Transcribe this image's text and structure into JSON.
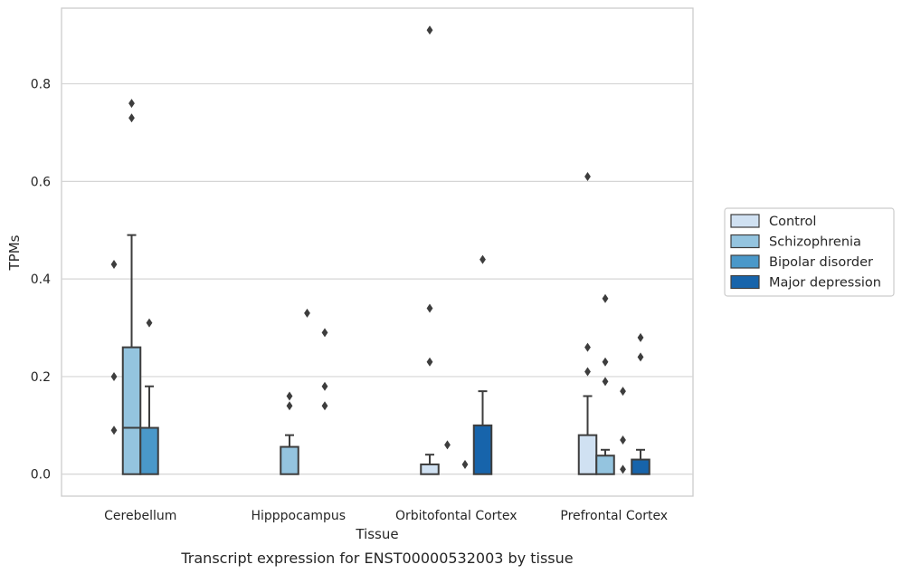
{
  "chart_data": {
    "type": "box",
    "caption": "Transcript expression for ENST00000532003 by tissue",
    "xlabel": "Tissue",
    "ylabel": "TPMs",
    "ylim": [
      -0.045,
      0.955
    ],
    "yticks": [
      0.0,
      0.2,
      0.4,
      0.6,
      0.8
    ],
    "ytick_labels": [
      "0.0",
      "0.2",
      "0.4",
      "0.6",
      "0.8"
    ],
    "grid": "horizontal",
    "legend_position": "right",
    "categories": [
      "Cerebellum",
      "Hipppocampus",
      "Orbitofontal Cortex",
      "Prefrontal Cortex"
    ],
    "series": [
      {
        "name": "Control",
        "color": "#d0e1f2",
        "boxes": [
          {
            "q1": 0,
            "median": 0,
            "q3": 0,
            "whisker_low": 0,
            "whisker_high": 0,
            "outliers": []
          },
          {
            "q1": 0,
            "median": 0,
            "q3": 0,
            "whisker_low": 0,
            "whisker_high": 0,
            "outliers": []
          },
          {
            "q1": 0,
            "median": 0,
            "q3": 0.02,
            "whisker_low": 0,
            "whisker_high": 0.04,
            "outliers": [
              0.23,
              0.34,
              0.91
            ]
          },
          {
            "q1": 0,
            "median": 0,
            "q3": 0.08,
            "whisker_low": 0,
            "whisker_high": 0.16,
            "outliers": [
              0.21,
              0.26,
              0.61
            ]
          }
        ]
      },
      {
        "name": "Schizophrenia",
        "color": "#94c4df",
        "boxes": [
          {
            "q1": 0,
            "median": 0.095,
            "q3": 0.26,
            "whisker_low": 0,
            "whisker_high": 0.49,
            "outliers": [
              0.73,
              0.76
            ]
          },
          {
            "q1": 0,
            "median": 0,
            "q3": 0.056,
            "whisker_low": 0,
            "whisker_high": 0.08,
            "outliers": [
              0.14,
              0.16
            ]
          },
          {
            "q1": 0,
            "median": 0,
            "q3": 0,
            "whisker_low": 0,
            "whisker_high": 0,
            "outliers": [
              0.06
            ]
          },
          {
            "q1": 0,
            "median": 0,
            "q3": 0.038,
            "whisker_low": 0,
            "whisker_high": 0.05,
            "outliers": [
              0.19,
              0.23,
              0.36
            ]
          }
        ]
      },
      {
        "name": "Bipolar disorder",
        "color": "#4a98c9",
        "boxes": [
          {
            "q1": 0,
            "median": 0,
            "q3": 0.095,
            "whisker_low": 0,
            "whisker_high": 0.18,
            "outliers": [
              0.31
            ]
          },
          {
            "q1": 0,
            "median": 0,
            "q3": 0,
            "whisker_low": 0,
            "whisker_high": 0,
            "outliers": [
              0.33
            ]
          },
          {
            "q1": 0,
            "median": 0,
            "q3": 0,
            "whisker_low": 0,
            "whisker_high": 0,
            "outliers": [
              0.02
            ]
          },
          {
            "q1": 0,
            "median": 0,
            "q3": 0,
            "whisker_low": 0,
            "whisker_high": 0,
            "outliers": [
              0.01,
              0.07,
              0.17
            ]
          }
        ]
      },
      {
        "name": "Major depression",
        "color": "#1764ab",
        "boxes": [
          {
            "q1": 0,
            "median": 0,
            "q3": 0,
            "whisker_low": 0,
            "whisker_high": 0,
            "outliers": []
          },
          {
            "q1": 0,
            "median": 0,
            "q3": 0,
            "whisker_low": 0,
            "whisker_high": 0,
            "outliers": [
              0.14,
              0.18,
              0.29
            ]
          },
          {
            "q1": 0,
            "median": 0,
            "q3": 0.1,
            "whisker_low": 0,
            "whisker_high": 0.17,
            "outliers": [
              0.44
            ]
          },
          {
            "q1": 0,
            "median": 0,
            "q3": 0.03,
            "whisker_low": 0,
            "whisker_high": 0.05,
            "outliers": [
              0.24,
              0.28
            ]
          }
        ]
      }
    ],
    "extra_outliers": [
      {
        "category": 0,
        "series": 0,
        "values": [
          0.09,
          0.2,
          0.43
        ]
      }
    ]
  }
}
